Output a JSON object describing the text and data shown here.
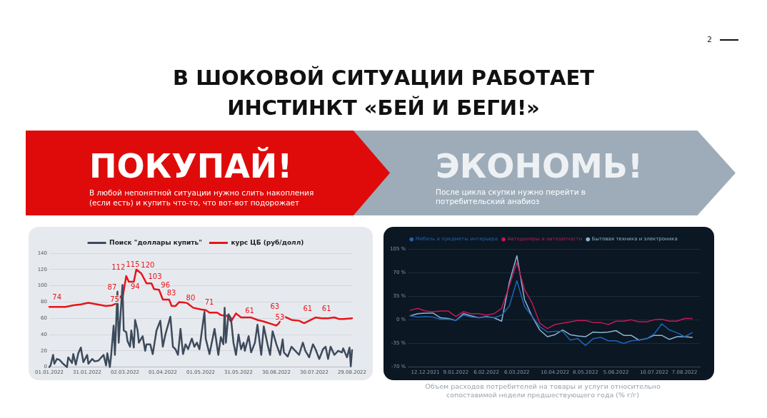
{
  "chart_data": [
    {
      "type": "other",
      "title": "В ШОКОВОЙ СИТУАЦИИ РАБОТАЕТ ИНСТИНКТ «БЕЙ И БЕГИ!»",
      "annotations": [
        "ПОКУПАЙ!",
        "В любой непонятной ситуации нужно слить накопления (если есть) и купить что-то, что вот-вот подорожает",
        "ЭКОНОМЬ!",
        "После цикла скупки нужно перейти в потребительский анабиоз",
        "2"
      ]
    },
    {
      "type": "line",
      "legend": "top",
      "grid": "y",
      "marker": "none",
      "line_style": "solid",
      "xlim": [
        "2022-01-01",
        "2022-08-29"
      ],
      "xticks": [
        {
          "value": "2022-01-01",
          "label": "01.01.2022"
        },
        {
          "value": "2022-01-31",
          "label": "31.01.2022"
        },
        {
          "value": "2022-03-02",
          "label": "02.03.2022"
        },
        {
          "value": "2022-04-01",
          "label": "01.04.2022"
        },
        {
          "value": "2022-05-01",
          "label": "01.05.2022"
        },
        {
          "value": "2022-05-31",
          "label": "31.05.2022"
        },
        {
          "value": "2022-06-30",
          "label": "30.06.2022"
        },
        {
          "value": "2022-07-30",
          "label": "30.07.2022"
        },
        {
          "value": "2022-08-29",
          "label": "29.08.2022"
        }
      ],
      "ylim": [
        0,
        140
      ],
      "yticks": [
        0,
        20,
        40,
        60,
        80,
        100,
        120,
        140
      ],
      "series": [
        {
          "name": "Поиск \"доллары купить\"",
          "color": "#3d4a5c",
          "x": [
            "2022-01-01",
            "2022-01-02",
            "2022-01-04",
            "2022-01-05",
            "2022-01-07",
            "2022-01-09",
            "2022-01-12",
            "2022-01-15",
            "2022-01-16",
            "2022-01-19",
            "2022-01-20",
            "2022-01-22",
            "2022-01-24",
            "2022-01-26",
            "2022-01-28",
            "2022-01-31",
            "2022-02-01",
            "2022-02-04",
            "2022-02-06",
            "2022-02-09",
            "2022-02-13",
            "2022-02-15",
            "2022-02-16",
            "2022-02-18",
            "2022-02-19",
            "2022-02-21",
            "2022-02-22",
            "2022-02-24",
            "2022-02-25",
            "2022-02-28",
            "2022-03-01",
            "2022-03-03",
            "2022-03-04",
            "2022-03-06",
            "2022-03-07",
            "2022-03-09",
            "2022-03-10",
            "2022-03-12",
            "2022-03-13",
            "2022-03-16",
            "2022-03-18",
            "2022-03-19",
            "2022-03-22",
            "2022-03-24",
            "2022-03-27",
            "2022-03-30",
            "2022-04-01",
            "2022-04-03",
            "2022-04-07",
            "2022-04-09",
            "2022-04-11",
            "2022-04-13",
            "2022-04-15",
            "2022-04-17",
            "2022-04-19",
            "2022-04-21",
            "2022-04-24",
            "2022-04-26",
            "2022-04-28",
            "2022-04-30",
            "2022-05-04",
            "2022-05-05",
            "2022-05-08",
            "2022-05-12",
            "2022-05-15",
            "2022-05-17",
            "2022-05-19",
            "2022-05-20",
            "2022-05-21",
            "2022-05-23",
            "2022-05-25",
            "2022-05-27",
            "2022-05-29",
            "2022-05-31",
            "2022-06-02",
            "2022-06-04",
            "2022-06-05",
            "2022-06-08",
            "2022-06-10",
            "2022-06-13",
            "2022-06-15",
            "2022-06-18",
            "2022-06-20",
            "2022-06-23",
            "2022-06-25",
            "2022-06-27",
            "2022-06-30",
            "2022-07-03",
            "2022-07-05",
            "2022-07-06",
            "2022-07-09",
            "2022-07-12",
            "2022-07-15",
            "2022-07-18",
            "2022-07-21",
            "2022-07-23",
            "2022-07-26",
            "2022-07-29",
            "2022-07-31",
            "2022-08-03",
            "2022-08-06",
            "2022-08-08",
            "2022-08-10",
            "2022-08-12",
            "2022-08-15",
            "2022-08-18",
            "2022-08-21",
            "2022-08-22",
            "2022-08-25",
            "2022-08-27",
            "2022-08-28",
            "2022-08-29"
          ],
          "values": [
            0,
            2,
            15,
            4,
            10,
            9,
            4,
            0,
            12,
            5,
            16,
            3,
            17,
            24,
            6,
            15,
            4,
            10,
            7,
            8,
            15,
            2,
            17,
            0,
            14,
            51,
            15,
            93,
            30,
            101,
            45,
            43,
            32,
            25,
            45,
            24,
            58,
            45,
            30,
            38,
            20,
            28,
            28,
            16,
            45,
            57,
            25,
            40,
            62,
            25,
            22,
            15,
            47,
            16,
            28,
            22,
            35,
            25,
            30,
            22,
            68,
            35,
            16,
            47,
            15,
            37,
            28,
            73,
            30,
            65,
            60,
            30,
            15,
            40,
            22,
            30,
            20,
            38,
            18,
            30,
            52,
            15,
            50,
            28,
            15,
            44,
            28,
            15,
            34,
            18,
            13,
            25,
            20,
            15,
            30,
            20,
            12,
            28,
            22,
            10,
            22,
            25,
            10,
            25,
            15,
            20,
            18,
            23,
            12,
            24,
            1,
            21
          ]
        },
        {
          "name": "курс ЦБ (руб/долл)",
          "color": "#e8141b",
          "x": [
            "2022-01-01",
            "2022-01-07",
            "2022-01-14",
            "2022-01-20",
            "2022-01-26",
            "2022-02-01",
            "2022-02-08",
            "2022-02-15",
            "2022-02-20",
            "2022-02-24",
            "2022-02-26",
            "2022-02-28",
            "2022-03-01",
            "2022-03-03",
            "2022-03-05",
            "2022-03-09",
            "2022-03-11",
            "2022-03-15",
            "2022-03-19",
            "2022-03-23",
            "2022-03-25",
            "2022-03-29",
            "2022-04-01",
            "2022-04-06",
            "2022-04-08",
            "2022-04-11",
            "2022-04-14",
            "2022-04-20",
            "2022-04-25",
            "2022-05-01",
            "2022-05-05",
            "2022-05-08",
            "2022-05-14",
            "2022-05-17",
            "2022-05-22",
            "2022-05-25",
            "2022-05-29",
            "2022-06-02",
            "2022-06-10",
            "2022-06-15",
            "2022-06-20",
            "2022-06-26",
            "2022-06-30",
            "2022-07-02",
            "2022-07-05",
            "2022-07-08",
            "2022-07-12",
            "2022-07-18",
            "2022-07-22",
            "2022-07-26",
            "2022-07-31",
            "2022-08-05",
            "2022-08-10",
            "2022-08-15",
            "2022-08-19",
            "2022-08-22",
            "2022-08-29"
          ],
          "values": [
            74,
            74,
            74,
            76,
            77,
            79,
            77,
            75,
            76,
            79,
            87,
            84,
            94,
            112,
            105,
            105,
            120,
            115,
            103,
            103,
            96,
            95,
            83,
            83,
            75,
            75,
            80,
            79,
            73,
            71,
            70,
            67,
            67,
            64,
            63,
            56,
            66,
            61,
            61,
            58,
            56,
            53,
            51,
            54,
            63,
            61,
            58,
            57,
            54,
            57,
            61,
            60,
            60,
            61,
            59,
            59,
            60
          ],
          "value_labels": [
            null,
            "74",
            null,
            null,
            null,
            null,
            null,
            "75",
            null,
            null,
            "87",
            null,
            "94",
            "112",
            null,
            null,
            "120",
            "115",
            "103",
            null,
            "96",
            null,
            "83",
            null,
            null,
            null,
            "80",
            null,
            null,
            "71",
            null,
            null,
            null,
            null,
            null,
            null,
            null,
            "61",
            null,
            null,
            null,
            "53",
            null,
            null,
            "63",
            null,
            null,
            null,
            null,
            null,
            "61",
            null,
            null,
            "61",
            null,
            null,
            null
          ]
        }
      ]
    },
    {
      "type": "line",
      "legend": "top",
      "grid": "y",
      "marker": "none",
      "line_style": "solid",
      "annotations": [
        "Объем расходов потребителей на товары и услуги относительно сопоставимой недели предшествующего года (% г/г)"
      ],
      "xlim": [
        "2021-11-26",
        "2022-08-21"
      ],
      "xticks": [
        {
          "value": "2021-12-12",
          "label": "12.12.2021"
        },
        {
          "value": "2022-01-09",
          "label": "9.01.2022"
        },
        {
          "value": "2022-02-06",
          "label": "6.02.2022"
        },
        {
          "value": "2022-03-06",
          "label": "6.03.2022"
        },
        {
          "value": "2022-04-10",
          "label": "10.04.2022"
        },
        {
          "value": "2022-05-08",
          "label": "8.05.2022"
        },
        {
          "value": "2022-06-05",
          "label": "5.06.2022"
        },
        {
          "value": "2022-07-10",
          "label": "10.07.2022"
        },
        {
          "value": "2022-08-07",
          "label": "7.08.2022"
        }
      ],
      "ylim": [
        -70,
        105
      ],
      "yticks": [
        {
          "value": -70,
          "label": "-70 %"
        },
        {
          "value": -35,
          "label": "-35 %"
        },
        {
          "value": 0,
          "label": "0 %"
        },
        {
          "value": 35,
          "label": "35 %"
        },
        {
          "value": 70,
          "label": "70 %"
        },
        {
          "value": 105,
          "label": "105 %"
        }
      ],
      "x": [
        "2021-11-28",
        "2021-12-05",
        "2021-12-12",
        "2021-12-19",
        "2021-12-26",
        "2022-01-02",
        "2022-01-09",
        "2022-01-16",
        "2022-01-23",
        "2022-01-30",
        "2022-02-06",
        "2022-02-13",
        "2022-02-20",
        "2022-02-27",
        "2022-03-06",
        "2022-03-13",
        "2022-03-20",
        "2022-03-27",
        "2022-04-03",
        "2022-04-10",
        "2022-04-17",
        "2022-04-24",
        "2022-05-01",
        "2022-05-08",
        "2022-05-15",
        "2022-05-22",
        "2022-05-29",
        "2022-06-05",
        "2022-06-12",
        "2022-06-19",
        "2022-06-26",
        "2022-07-03",
        "2022-07-10",
        "2022-07-17",
        "2022-07-24",
        "2022-07-31",
        "2022-08-07",
        "2022-08-14"
      ],
      "series": [
        {
          "name": "Мебель и предметы интерьера",
          "color": "#1f63b5",
          "values": [
            6,
            4,
            5,
            4,
            1,
            1,
            -1,
            7,
            4,
            3,
            4,
            3,
            7,
            20,
            58,
            20,
            5,
            -10,
            -18,
            -17,
            -17,
            -30,
            -28,
            -38,
            -28,
            -26,
            -31,
            -31,
            -35,
            -31,
            -30,
            -28,
            -21,
            -6,
            -15,
            -19,
            -25,
            -19
          ]
        },
        {
          "name": "Автодилеры и автозапчасти",
          "color": "#c2185b",
          "values": [
            14,
            17,
            13,
            12,
            13,
            13,
            5,
            12,
            9,
            9,
            7,
            9,
            17,
            50,
            85,
            45,
            25,
            -5,
            -13,
            -7,
            -5,
            -3,
            -1,
            -1,
            -4,
            -4,
            -7,
            -2,
            -2,
            0,
            -3,
            -3,
            0,
            1,
            -2,
            -2,
            2,
            2
          ]
        },
        {
          "name": "Бытовая техника и электроника",
          "color": "#8ab4d6",
          "values": [
            6,
            9,
            10,
            10,
            3,
            2,
            -1,
            9,
            6,
            3,
            5,
            3,
            -2,
            55,
            95,
            30,
            5,
            -15,
            -25,
            -22,
            -15,
            -22,
            -24,
            -25,
            -18,
            -19,
            -18,
            -16,
            -23,
            -23,
            -30,
            -28,
            -23,
            -23,
            -29,
            -25,
            -25,
            -26
          ]
        }
      ]
    }
  ]
}
